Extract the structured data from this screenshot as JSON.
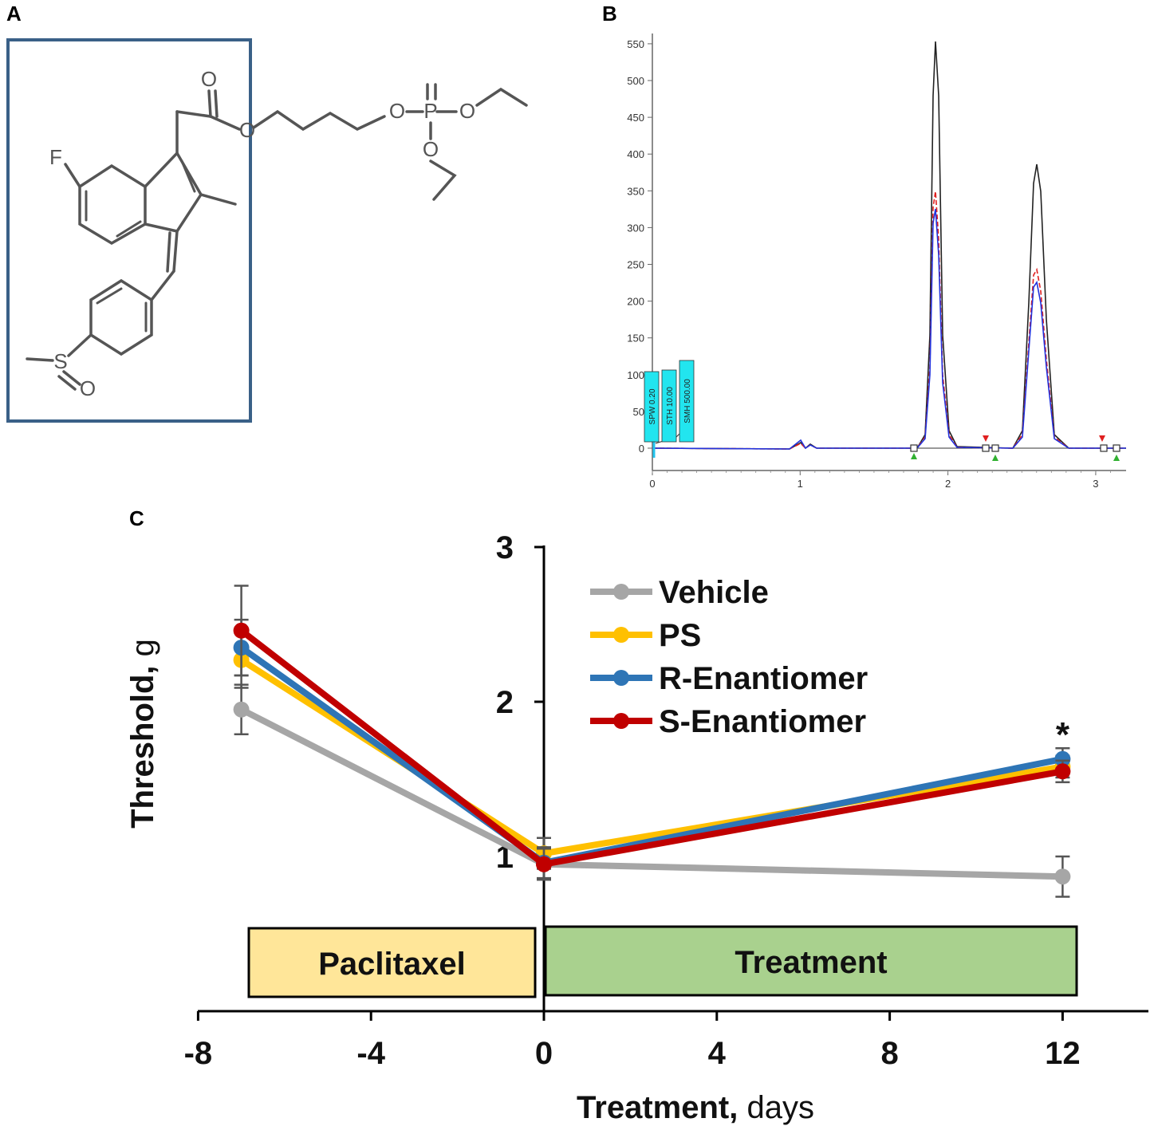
{
  "panels": {
    "a": "A",
    "b": "B",
    "c": "C"
  },
  "structure": {
    "atoms": [
      "O",
      "O",
      "F",
      "O",
      "P",
      "O",
      "O",
      "S",
      "O"
    ]
  },
  "chromatogram": {
    "x_ticks": [
      "0",
      "1",
      "2",
      "3"
    ],
    "y_ticks": [
      "0",
      "50",
      "100",
      "150",
      "200",
      "250",
      "300",
      "350",
      "400",
      "450",
      "500",
      "550"
    ],
    "flags": [
      "SPW 0.20",
      "STH 10.00",
      "SMH 500.00"
    ],
    "colors": {
      "black": "#222222",
      "red": "#e02020",
      "blue": "#2233dd",
      "flag": "#22e5ef"
    }
  },
  "chart_data": {
    "type": "line",
    "xlabel": "Treatment, days",
    "ylabel": "Threshold, g",
    "x_ticks": [
      "-8",
      "-4",
      "0",
      "4",
      "8",
      "12"
    ],
    "y_ticks": [
      "1",
      "2",
      "3"
    ],
    "xlim": [
      -8,
      14
    ],
    "ylim": [
      0,
      3
    ],
    "x": [
      -7,
      0,
      12
    ],
    "series": [
      {
        "name": "Vehicle",
        "color": "#a6a6a6",
        "values": [
          1.95,
          0.95,
          0.87
        ],
        "err": [
          0.16,
          0.1,
          0.13
        ]
      },
      {
        "name": "PS",
        "color": "#ffc000",
        "values": [
          2.27,
          1.02,
          1.58
        ],
        "err": [
          0.18,
          0.1,
          0.07
        ]
      },
      {
        "name": "R-Enantiomer",
        "color": "#2e75b6",
        "values": [
          2.35,
          0.96,
          1.63
        ],
        "err": [
          0.18,
          0.1,
          0.07
        ]
      },
      {
        "name": "S-Enantiomer",
        "color": "#c00000",
        "values": [
          2.46,
          0.95,
          1.55
        ],
        "err": [
          0.29,
          0.1,
          0.07
        ]
      }
    ],
    "annotations": [
      {
        "text": "*",
        "x": 12
      }
    ],
    "bands": [
      {
        "label": "Paclitaxel",
        "color": "#ffe699"
      },
      {
        "label": "Treatment",
        "color": "#a9d18e"
      }
    ]
  }
}
